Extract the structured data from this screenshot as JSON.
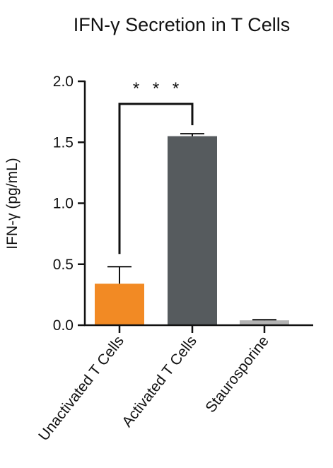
{
  "chart_data": {
    "type": "bar",
    "title": "IFN-γ Secretion in T Cells",
    "xlabel": "",
    "ylabel": "IFN-γ (pg/mL)",
    "ylim": [
      0,
      2.0
    ],
    "yticks": [
      {
        "value": 0.0,
        "label": "0.0"
      },
      {
        "value": 0.5,
        "label": "0.5"
      },
      {
        "value": 1.0,
        "label": "1.0"
      },
      {
        "value": 1.5,
        "label": "1.5"
      },
      {
        "value": 2.0,
        "label": "2.0"
      }
    ],
    "categories": [
      "Unactivated T Cells",
      "Activated T Cells",
      "Staurosporine"
    ],
    "values": [
      0.34,
      1.55,
      0.04
    ],
    "errors": [
      0.14,
      0.02,
      0.005
    ],
    "colors": [
      "#f28a24",
      "#565b5e",
      "#b3b3b3"
    ],
    "grid": false,
    "legend": "none",
    "significance": {
      "from": 0,
      "to": 1,
      "label": "* * *"
    }
  }
}
